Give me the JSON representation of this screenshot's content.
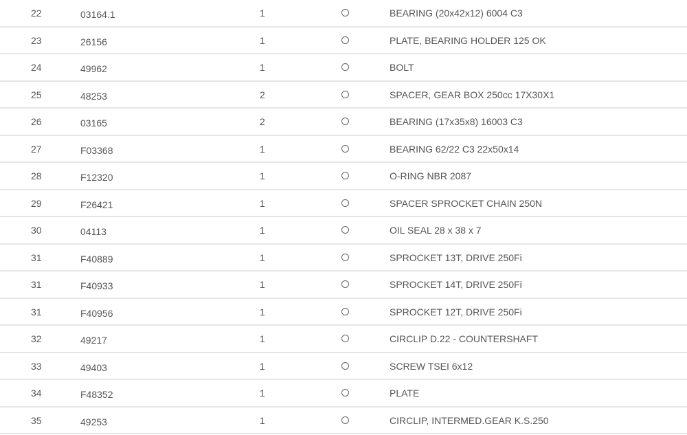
{
  "parts_table": {
    "rows": [
      {
        "pos": "22",
        "part": "03164.1",
        "qty": "1",
        "selected": false,
        "desc": "BEARING (20x42x12) 6004 C3"
      },
      {
        "pos": "23",
        "part": "26156",
        "qty": "1",
        "selected": false,
        "desc": "PLATE, BEARING HOLDER 125 OK"
      },
      {
        "pos": "24",
        "part": "49962",
        "qty": "1",
        "selected": false,
        "desc": "BOLT"
      },
      {
        "pos": "25",
        "part": "48253",
        "qty": "2",
        "selected": false,
        "desc": "SPACER, GEAR BOX 250cc 17X30X1"
      },
      {
        "pos": "26",
        "part": "03165",
        "qty": "2",
        "selected": false,
        "desc": "BEARING (17x35x8) 16003 C3"
      },
      {
        "pos": "27",
        "part": "F03368",
        "qty": "1",
        "selected": false,
        "desc": "BEARING 62/22 C3 22x50x14"
      },
      {
        "pos": "28",
        "part": "F12320",
        "qty": "1",
        "selected": false,
        "desc": "O-RING NBR 2087"
      },
      {
        "pos": "29",
        "part": "F26421",
        "qty": "1",
        "selected": false,
        "desc": "SPACER SPROCKET CHAIN 250N"
      },
      {
        "pos": "30",
        "part": "04113",
        "qty": "1",
        "selected": false,
        "desc": "OIL SEAL 28 x 38 x 7"
      },
      {
        "pos": "31",
        "part": "F40889",
        "qty": "1",
        "selected": false,
        "desc": "SPROCKET 13T, DRIVE 250Fi"
      },
      {
        "pos": "31",
        "part": "F40933",
        "qty": "1",
        "selected": false,
        "desc": "SPROCKET 14T, DRIVE 250Fi"
      },
      {
        "pos": "31",
        "part": "F40956",
        "qty": "1",
        "selected": false,
        "desc": "SPROCKET 12T, DRIVE 250Fi"
      },
      {
        "pos": "32",
        "part": "49217",
        "qty": "1",
        "selected": false,
        "desc": "CIRCLIP D.22 - COUNTERSHAFT"
      },
      {
        "pos": "33",
        "part": "49403",
        "qty": "1",
        "selected": false,
        "desc": "SCREW TSEI 6x12"
      },
      {
        "pos": "34",
        "part": "F48352",
        "qty": "1",
        "selected": false,
        "desc": "PLATE"
      },
      {
        "pos": "35",
        "part": "49253",
        "qty": "1",
        "selected": false,
        "desc": "CIRCLIP, INTERMED.GEAR K.S.250"
      }
    ]
  }
}
